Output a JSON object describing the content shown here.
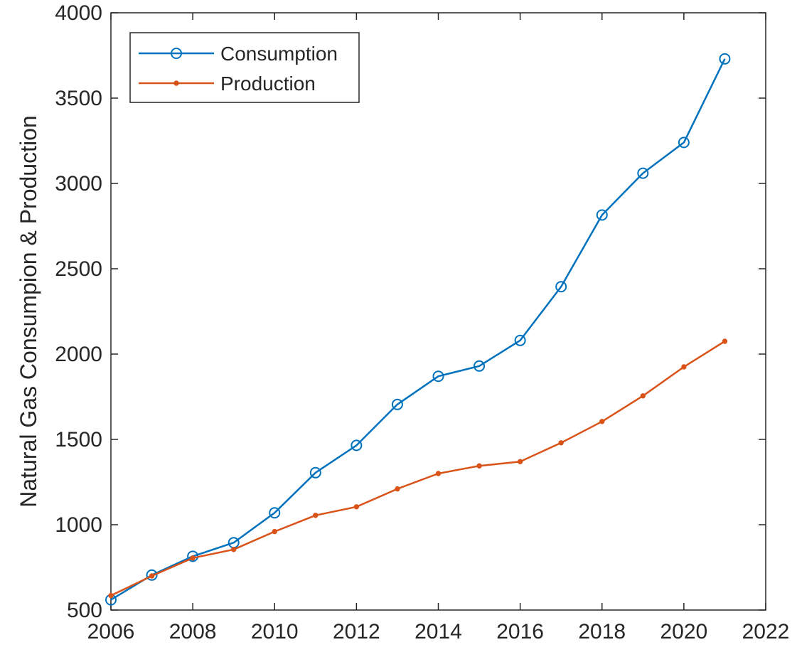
{
  "chart_data": {
    "type": "line",
    "title": "",
    "xlabel": "",
    "ylabel": "Natural Gas Consumpion & Production",
    "xlim": [
      2006,
      2022
    ],
    "ylim": [
      500,
      4000
    ],
    "xticks": [
      2006,
      2008,
      2010,
      2012,
      2014,
      2016,
      2018,
      2020,
      2022
    ],
    "yticks": [
      500,
      1000,
      1500,
      2000,
      2500,
      3000,
      3500,
      4000
    ],
    "grid": false,
    "legend_position": "top-left",
    "x": [
      2006,
      2007,
      2008,
      2009,
      2010,
      2011,
      2012,
      2013,
      2014,
      2015,
      2016,
      2017,
      2018,
      2019,
      2020,
      2021
    ],
    "series": [
      {
        "name": "Consumption",
        "color": "#0072BD",
        "marker": "circle",
        "values": [
          560,
          705,
          815,
          895,
          1070,
          1305,
          1465,
          1705,
          1870,
          1930,
          2080,
          2395,
          2815,
          3060,
          3240,
          3730
        ]
      },
      {
        "name": "Production",
        "color": "#D95319",
        "marker": "dot",
        "values": [
          585,
          700,
          805,
          855,
          960,
          1055,
          1105,
          1210,
          1300,
          1345,
          1370,
          1480,
          1605,
          1755,
          1925,
          2075
        ]
      }
    ]
  }
}
